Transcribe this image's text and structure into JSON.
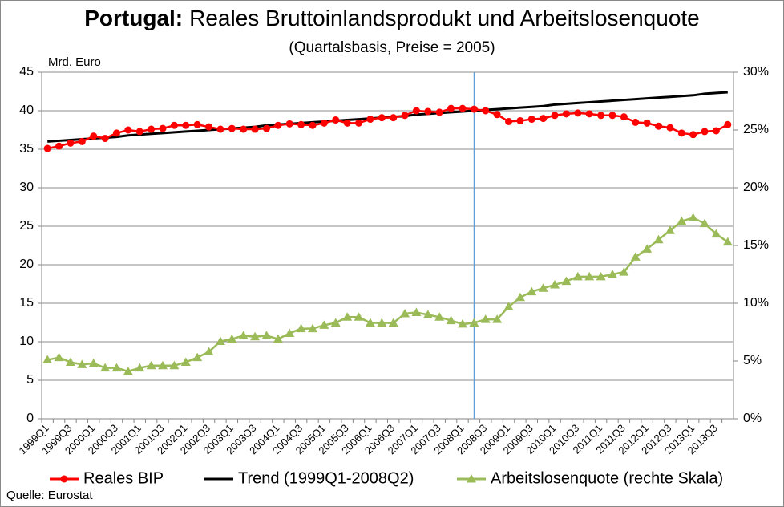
{
  "chart_data": {
    "type": "line",
    "title_prefix": "Portugal:",
    "title": "Reales Bruttoinlandsprodukt und Arbeitslosenquote",
    "subtitle": "(Quartalsbasis, Preise = 2005)",
    "y_label": "Mrd. Euro",
    "source": "Quelle: Eurostat",
    "categories": [
      "1999Q1",
      null,
      "1999Q3",
      null,
      "2000Q1",
      null,
      "2000Q3",
      null,
      "2001Q1",
      null,
      "2001Q3",
      null,
      "2002Q1",
      null,
      "2002Q3",
      null,
      "2003Q1",
      null,
      "2003Q3",
      null,
      "2004Q1",
      null,
      "2004Q3",
      null,
      "2005Q1",
      null,
      "2005Q3",
      null,
      "2006Q1",
      null,
      "2006Q3",
      null,
      "2007Q1",
      null,
      "2007Q3",
      null,
      "2008Q1",
      null,
      "2008Q3",
      null,
      "2009Q1",
      null,
      "2009Q3",
      null,
      "2010Q1",
      null,
      "2010Q3",
      null,
      "2011Q1",
      null,
      "2011Q3",
      null,
      "2012Q1",
      null,
      "2012Q3",
      null,
      "2013Q1",
      null,
      "2013Q3",
      null
    ],
    "ylim": [
      0,
      45
    ],
    "yticks": [
      0,
      5,
      10,
      15,
      20,
      25,
      30,
      35,
      40,
      45
    ],
    "y2lim": [
      0,
      30
    ],
    "y2ticks": [
      {
        "value": 0,
        "label": "0%"
      },
      {
        "value": 5,
        "label": "5%"
      },
      {
        "value": 10,
        "label": "10%"
      },
      {
        "value": 15,
        "label": "15%"
      },
      {
        "value": 20,
        "label": "20%"
      },
      {
        "value": 25,
        "label": "25%"
      },
      {
        "value": 30,
        "label": "30%"
      }
    ],
    "grid": true,
    "legend": "bottom",
    "vline": {
      "category_index": 37,
      "color": "#5b9bd5"
    },
    "series": [
      {
        "name": "Reales BIP",
        "color": "#ff0000",
        "marker": "circle",
        "values": [
          35.1,
          35.4,
          35.8,
          36.0,
          36.7,
          36.4,
          37.1,
          37.5,
          37.3,
          37.6,
          37.7,
          38.1,
          38.1,
          38.2,
          37.9,
          37.6,
          37.7,
          37.6,
          37.6,
          37.7,
          38.1,
          38.3,
          38.2,
          38.1,
          38.4,
          38.8,
          38.4,
          38.4,
          38.9,
          39.1,
          39.1,
          39.4,
          40.0,
          39.9,
          39.8,
          40.3,
          40.3,
          40.2,
          40.0,
          39.5,
          38.6,
          38.7,
          38.9,
          39.0,
          39.4,
          39.6,
          39.7,
          39.6,
          39.4,
          39.4,
          39.2,
          38.5,
          38.4,
          38.0,
          37.8,
          37.1,
          36.9,
          37.3,
          37.4,
          38.2
        ]
      },
      {
        "name": "Trend (1999Q1-2008Q2)",
        "color": "#000000",
        "marker": "none",
        "values": [
          36.0,
          36.1,
          36.2,
          36.3,
          36.4,
          36.5,
          36.6,
          36.8,
          36.9,
          37.0,
          37.1,
          37.2,
          37.3,
          37.4,
          37.5,
          37.6,
          37.7,
          37.8,
          37.9,
          38.1,
          38.2,
          38.3,
          38.4,
          38.5,
          38.6,
          38.7,
          38.8,
          38.9,
          39.0,
          39.1,
          39.2,
          39.3,
          39.5,
          39.6,
          39.7,
          39.8,
          39.9,
          40.0,
          40.1,
          40.2,
          40.3,
          40.4,
          40.5,
          40.6,
          40.8,
          40.9,
          41.0,
          41.1,
          41.2,
          41.3,
          41.4,
          41.5,
          41.6,
          41.7,
          41.8,
          41.9,
          42.0,
          42.2,
          42.3,
          42.4
        ]
      },
      {
        "name": "Arbeitslosenquote (rechte Skala)",
        "color": "#9bbb59",
        "marker": "triangle",
        "axis": "y2",
        "values": [
          5.1,
          5.3,
          4.9,
          4.7,
          4.8,
          4.4,
          4.4,
          4.1,
          4.4,
          4.6,
          4.6,
          4.6,
          4.9,
          5.3,
          5.8,
          6.7,
          6.9,
          7.2,
          7.1,
          7.2,
          6.9,
          7.4,
          7.8,
          7.8,
          8.1,
          8.3,
          8.8,
          8.8,
          8.3,
          8.3,
          8.3,
          9.1,
          9.2,
          9.0,
          8.8,
          8.5,
          8.2,
          8.3,
          8.6,
          8.6,
          9.7,
          10.5,
          11.0,
          11.3,
          11.6,
          11.9,
          12.3,
          12.3,
          12.3,
          12.5,
          12.7,
          14.0,
          14.7,
          15.5,
          16.3,
          17.1,
          17.4,
          16.9,
          16.0,
          15.3
        ]
      }
    ]
  }
}
